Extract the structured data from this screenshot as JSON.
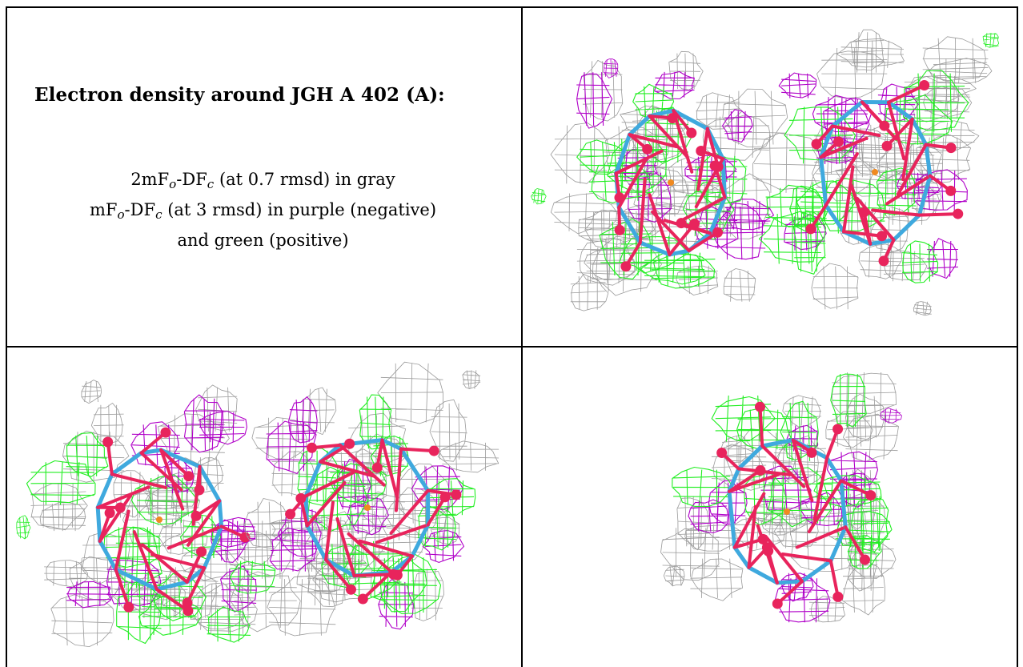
{
  "panel_text": {
    "title": "Electron density around JGH A 402 (A):",
    "line1": {
      "pre": "2mF",
      "sub_o": "o",
      "mid": "-DF",
      "sub_c": "c",
      "post": " (at 0.7 rmsd) in gray"
    },
    "line2": {
      "pre": "mF",
      "sub_o": "o",
      "mid": "-DF",
      "sub_c": "c",
      "post": " (at 3 rmsd) in purple (negative)"
    },
    "line3": "and green (positive)"
  },
  "colors": {
    "mesh_2fofc": "#9a9a9a",
    "mesh_negative": "#b000c8",
    "mesh_positive": "#22ee22",
    "bond": "#3fa9de",
    "atom_oxygen": "#e8245c",
    "atom_center": "#f08a20"
  },
  "views": [
    {
      "id": "view-top-right",
      "cluster_count": 2
    },
    {
      "id": "view-bottom-left",
      "cluster_count": 2
    },
    {
      "id": "view-bottom-right",
      "cluster_count": 1
    }
  ]
}
